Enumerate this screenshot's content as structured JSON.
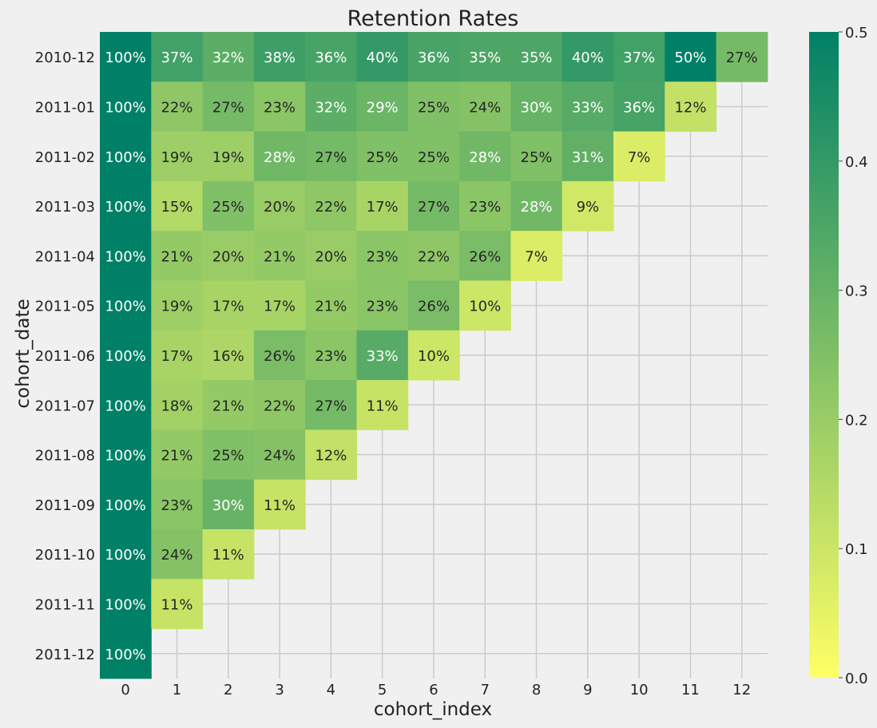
{
  "chart_data": {
    "type": "heatmap",
    "title": "Retention Rates",
    "xlabel": "cohort_index",
    "ylabel": "cohort_date",
    "x_categories": [
      "0",
      "1",
      "2",
      "3",
      "4",
      "5",
      "6",
      "7",
      "8",
      "9",
      "10",
      "11",
      "12"
    ],
    "y_categories": [
      "2010-12",
      "2011-01",
      "2011-02",
      "2011-03",
      "2011-04",
      "2011-05",
      "2011-06",
      "2011-07",
      "2011-08",
      "2011-09",
      "2011-10",
      "2011-11",
      "2011-12"
    ],
    "values": [
      [
        1.0,
        0.37,
        0.32,
        0.38,
        0.36,
        0.4,
        0.36,
        0.35,
        0.35,
        0.4,
        0.37,
        0.5,
        0.27
      ],
      [
        1.0,
        0.22,
        0.27,
        0.23,
        0.32,
        0.29,
        0.25,
        0.24,
        0.3,
        0.33,
        0.36,
        0.12,
        null
      ],
      [
        1.0,
        0.19,
        0.19,
        0.28,
        0.27,
        0.25,
        0.25,
        0.28,
        0.25,
        0.31,
        0.07,
        null,
        null
      ],
      [
        1.0,
        0.15,
        0.25,
        0.2,
        0.22,
        0.17,
        0.27,
        0.23,
        0.28,
        0.09,
        null,
        null,
        null
      ],
      [
        1.0,
        0.21,
        0.2,
        0.21,
        0.2,
        0.23,
        0.22,
        0.26,
        0.07,
        null,
        null,
        null,
        null
      ],
      [
        1.0,
        0.19,
        0.17,
        0.17,
        0.21,
        0.23,
        0.26,
        0.1,
        null,
        null,
        null,
        null,
        null
      ],
      [
        1.0,
        0.17,
        0.16,
        0.26,
        0.23,
        0.33,
        0.1,
        null,
        null,
        null,
        null,
        null,
        null
      ],
      [
        1.0,
        0.18,
        0.21,
        0.22,
        0.27,
        0.11,
        null,
        null,
        null,
        null,
        null,
        null,
        null
      ],
      [
        1.0,
        0.21,
        0.25,
        0.24,
        0.12,
        null,
        null,
        null,
        null,
        null,
        null,
        null,
        null
      ],
      [
        1.0,
        0.23,
        0.3,
        0.11,
        null,
        null,
        null,
        null,
        null,
        null,
        null,
        null,
        null
      ],
      [
        1.0,
        0.24,
        0.11,
        null,
        null,
        null,
        null,
        null,
        null,
        null,
        null,
        null,
        null
      ],
      [
        1.0,
        0.11,
        null,
        null,
        null,
        null,
        null,
        null,
        null,
        null,
        null,
        null,
        null
      ],
      [
        1.0,
        null,
        null,
        null,
        null,
        null,
        null,
        null,
        null,
        null,
        null,
        null,
        null
      ]
    ],
    "labels": [
      [
        "100%",
        "37%",
        "32%",
        "38%",
        "36%",
        "40%",
        "36%",
        "35%",
        "35%",
        "40%",
        "37%",
        "50%",
        "27%"
      ],
      [
        "100%",
        "22%",
        "27%",
        "23%",
        "32%",
        "29%",
        "25%",
        "24%",
        "30%",
        "33%",
        "36%",
        "12%",
        null
      ],
      [
        "100%",
        "19%",
        "19%",
        "28%",
        "27%",
        "25%",
        "25%",
        "28%",
        "25%",
        "31%",
        "7%",
        null,
        null
      ],
      [
        "100%",
        "15%",
        "25%",
        "20%",
        "22%",
        "17%",
        "27%",
        "23%",
        "28%",
        "9%",
        null,
        null,
        null
      ],
      [
        "100%",
        "21%",
        "20%",
        "21%",
        "20%",
        "23%",
        "22%",
        "26%",
        "7%",
        null,
        null,
        null,
        null
      ],
      [
        "100%",
        "19%",
        "17%",
        "17%",
        "21%",
        "23%",
        "26%",
        "10%",
        null,
        null,
        null,
        null,
        null
      ],
      [
        "100%",
        "17%",
        "16%",
        "26%",
        "23%",
        "33%",
        "10%",
        null,
        null,
        null,
        null,
        null,
        null
      ],
      [
        "100%",
        "18%",
        "21%",
        "22%",
        "27%",
        "11%",
        null,
        null,
        null,
        null,
        null,
        null,
        null
      ],
      [
        "100%",
        "21%",
        "25%",
        "24%",
        "12%",
        null,
        null,
        null,
        null,
        null,
        null,
        null,
        null
      ],
      [
        "100%",
        "23%",
        "30%",
        "11%",
        null,
        null,
        null,
        null,
        null,
        null,
        null,
        null,
        null
      ],
      [
        "100%",
        "24%",
        "11%",
        null,
        null,
        null,
        null,
        null,
        null,
        null,
        null,
        null,
        null
      ],
      [
        "100%",
        "11%",
        null,
        null,
        null,
        null,
        null,
        null,
        null,
        null,
        null,
        null,
        null
      ],
      [
        "100%",
        null,
        null,
        null,
        null,
        null,
        null,
        null,
        null,
        null,
        null,
        null,
        null
      ]
    ],
    "colorbar": {
      "vmin": 0.0,
      "vmax": 0.5,
      "ticks": [
        "0.0",
        "0.1",
        "0.2",
        "0.3",
        "0.4",
        "0.5"
      ]
    },
    "colormap": "summer_r",
    "colors": {
      "low": "#ffff66",
      "high": "#008066",
      "background": "#f0f0f0",
      "grid": "#cbcbcb",
      "text_dark": "#262626",
      "text_light": "#ffffff"
    },
    "grid": true
  }
}
